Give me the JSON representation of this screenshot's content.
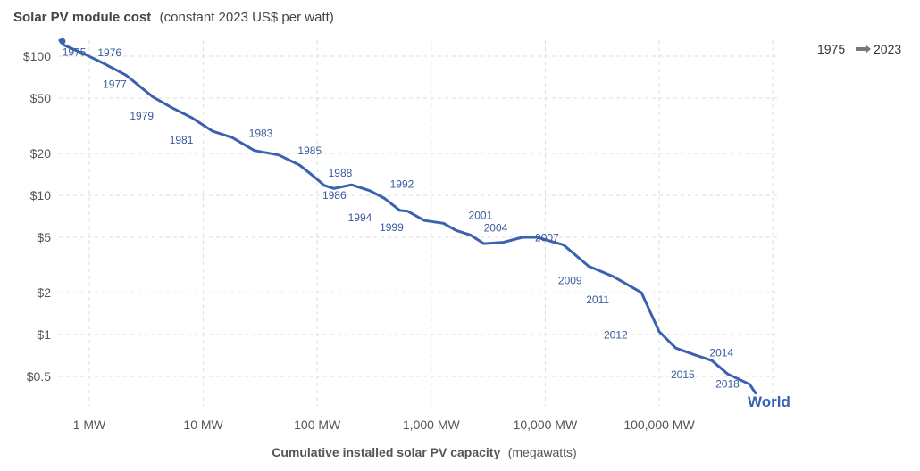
{
  "chart_data": {
    "type": "line",
    "title": "Solar PV module cost",
    "subtitle": "(constant 2023 US$ per watt)",
    "xlabel": "Cumulative installed solar PV capacity",
    "xlabel_unit": "(megawatts)",
    "x_scale": "log",
    "y_scale": "log",
    "xlim": [
      0.55,
      1150000
    ],
    "ylim": [
      0.28,
      125
    ],
    "grid": true,
    "x_ticks": [
      {
        "value": 1,
        "label": "1 MW"
      },
      {
        "value": 10,
        "label": "10 MW"
      },
      {
        "value": 100,
        "label": "100 MW"
      },
      {
        "value": 1000,
        "label": "1,000 MW"
      },
      {
        "value": 10000,
        "label": "10,000 MW"
      },
      {
        "value": 100000,
        "label": "100,000 MW"
      }
    ],
    "y_ticks": [
      {
        "value": 100,
        "label": "$100"
      },
      {
        "value": 50,
        "label": "$50"
      },
      {
        "value": 20,
        "label": "$20"
      },
      {
        "value": 10,
        "label": "$10"
      },
      {
        "value": 5,
        "label": "$5"
      },
      {
        "value": 2,
        "label": "$2"
      },
      {
        "value": 1,
        "label": "$1"
      },
      {
        "value": 0.5,
        "label": "$0.5"
      }
    ],
    "series": [
      {
        "name": "World",
        "color": "#3a62b0",
        "points": [
          {
            "x": 0.55,
            "y": 130,
            "label": ""
          },
          {
            "x": 0.6,
            "y": 120,
            "label": "1975"
          },
          {
            "x": 0.92,
            "y": 103,
            "label": "1976"
          },
          {
            "x": 1.4,
            "y": 87,
            "label": ""
          },
          {
            "x": 2.1,
            "y": 73,
            "label": "1977"
          },
          {
            "x": 3.6,
            "y": 51,
            "label": ""
          },
          {
            "x": 5.2,
            "y": 43,
            "label": "1979"
          },
          {
            "x": 8.0,
            "y": 36,
            "label": ""
          },
          {
            "x": 12,
            "y": 29,
            "label": "1981"
          },
          {
            "x": 18,
            "y": 26,
            "label": ""
          },
          {
            "x": 28,
            "y": 21,
            "label": "1983"
          },
          {
            "x": 46,
            "y": 19.5,
            "label": ""
          },
          {
            "x": 70,
            "y": 16.5,
            "label": "1985"
          },
          {
            "x": 95,
            "y": 13.5,
            "label": ""
          },
          {
            "x": 115,
            "y": 11.8,
            "label": "1986"
          },
          {
            "x": 140,
            "y": 11.2,
            "label": ""
          },
          {
            "x": 200,
            "y": 11.9,
            "label": "1988"
          },
          {
            "x": 290,
            "y": 10.8,
            "label": ""
          },
          {
            "x": 390,
            "y": 9.5,
            "label": "1992"
          },
          {
            "x": 480,
            "y": 8.3,
            "label": ""
          },
          {
            "x": 530,
            "y": 7.8,
            "label": "1994"
          },
          {
            "x": 620,
            "y": 7.7,
            "label": ""
          },
          {
            "x": 870,
            "y": 6.6,
            "label": "1999"
          },
          {
            "x": 1280,
            "y": 6.3,
            "label": ""
          },
          {
            "x": 1650,
            "y": 5.6,
            "label": "2001"
          },
          {
            "x": 2200,
            "y": 5.2,
            "label": ""
          },
          {
            "x": 2900,
            "y": 4.5,
            "label": ""
          },
          {
            "x": 4300,
            "y": 4.6,
            "label": "2004"
          },
          {
            "x": 6300,
            "y": 5.0,
            "label": ""
          },
          {
            "x": 8500,
            "y": 5.0,
            "label": ""
          },
          {
            "x": 14500,
            "y": 4.4,
            "label": "2007"
          },
          {
            "x": 24000,
            "y": 3.1,
            "label": "2009"
          },
          {
            "x": 40000,
            "y": 2.6,
            "label": ""
          },
          {
            "x": 70000,
            "y": 2.0,
            "label": "2011"
          },
          {
            "x": 100000,
            "y": 1.05,
            "label": "2012"
          },
          {
            "x": 140000,
            "y": 0.8,
            "label": ""
          },
          {
            "x": 200000,
            "y": 0.72,
            "label": "2014"
          },
          {
            "x": 290000,
            "y": 0.65,
            "label": "2015"
          },
          {
            "x": 400000,
            "y": 0.52,
            "label": ""
          },
          {
            "x": 620000,
            "y": 0.44,
            "label": "2018"
          },
          {
            "x": 700000,
            "y": 0.38,
            "label": ""
          }
        ]
      }
    ],
    "time_range": {
      "start": "1975",
      "end": "2023"
    }
  }
}
